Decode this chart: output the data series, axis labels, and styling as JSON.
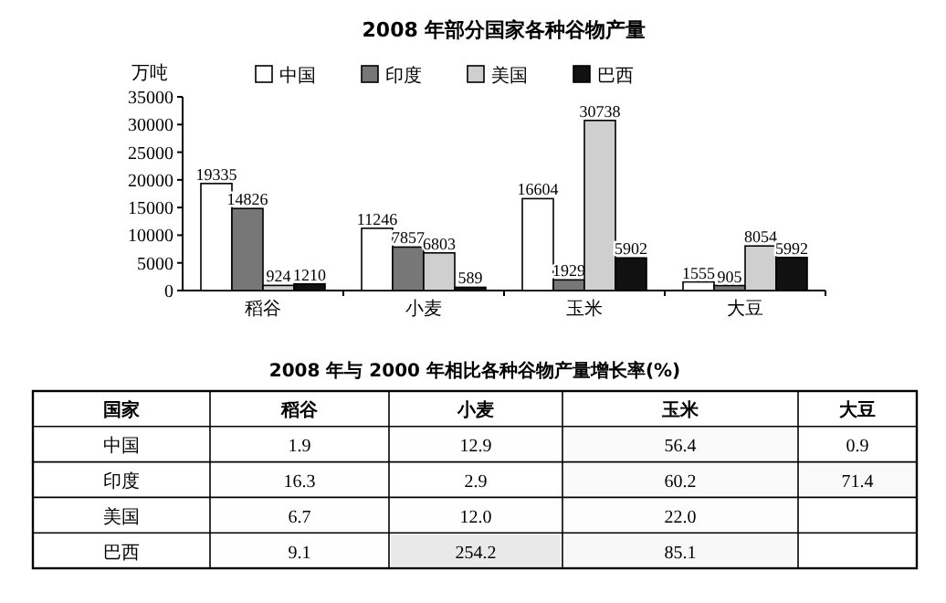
{
  "chart_data": [
    {
      "type": "bar",
      "title": "2008 年部分国家各种谷物产量",
      "ylabel": "万吨",
      "categories": [
        "稻谷",
        "小麦",
        "玉米",
        "大豆"
      ],
      "series": [
        {
          "name": "中国",
          "color": "#ffffff",
          "values": [
            19335,
            11246,
            16604,
            1555
          ]
        },
        {
          "name": "印度",
          "color": "#777777",
          "values": [
            14826,
            7857,
            1929,
            905
          ]
        },
        {
          "name": "美国",
          "color": "#cfcfcf",
          "values": [
            924,
            6803,
            30738,
            8054
          ]
        },
        {
          "name": "巴西",
          "color": "#111111",
          "values": [
            1210,
            589,
            5902,
            5992
          ]
        }
      ],
      "ylim": [
        0,
        35000
      ],
      "yticks": [
        0,
        5000,
        10000,
        15000,
        20000,
        25000,
        30000,
        35000
      ],
      "data_labels": true,
      "legend": "top",
      "grid": false
    },
    {
      "type": "heatmap",
      "title": "2008 年与 2000 年相比各种谷物产量增长率(%)",
      "ylabel": "国家",
      "categories": [
        "稻谷",
        "小麦",
        "玉米",
        "大豆"
      ],
      "y_categories": [
        "中国",
        "印度",
        "美国",
        "巴西"
      ],
      "cells": [
        [
          1.9,
          12.9,
          56.4,
          0.9
        ],
        [
          16.3,
          2.9,
          60.2,
          71.4
        ],
        [
          6.7,
          12.0,
          22.0,
          null
        ],
        [
          9.1,
          254.2,
          85.1,
          null
        ]
      ],
      "cell_labels": [
        [
          "1.9",
          "12.9",
          "56.4",
          "0.9"
        ],
        [
          "16.3",
          "2.9",
          "60.2",
          "71.4"
        ],
        [
          "6.7",
          "12.0",
          "22.0",
          null
        ],
        [
          "9.1",
          "254.2",
          "85.1",
          null
        ]
      ]
    }
  ]
}
